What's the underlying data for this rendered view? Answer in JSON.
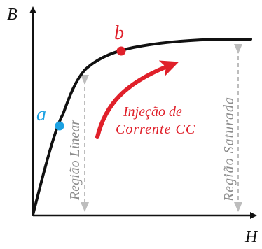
{
  "axes": {
    "y_label": "B",
    "x_label": "H"
  },
  "points": {
    "a": {
      "label": "a",
      "color": "#1ba1e2"
    },
    "b": {
      "label": "b",
      "color": "#e0202a"
    }
  },
  "annotation": {
    "line1": "Injeção de",
    "line2": "Corrente CC",
    "color": "#e0202a"
  },
  "regions": {
    "linear": "Região Linear",
    "saturated": "Região Saturada",
    "color": "#8c8c8c"
  },
  "colors": {
    "curve": "#111111",
    "axes": "#111111",
    "dimension_line": "#b0b0b0"
  }
}
